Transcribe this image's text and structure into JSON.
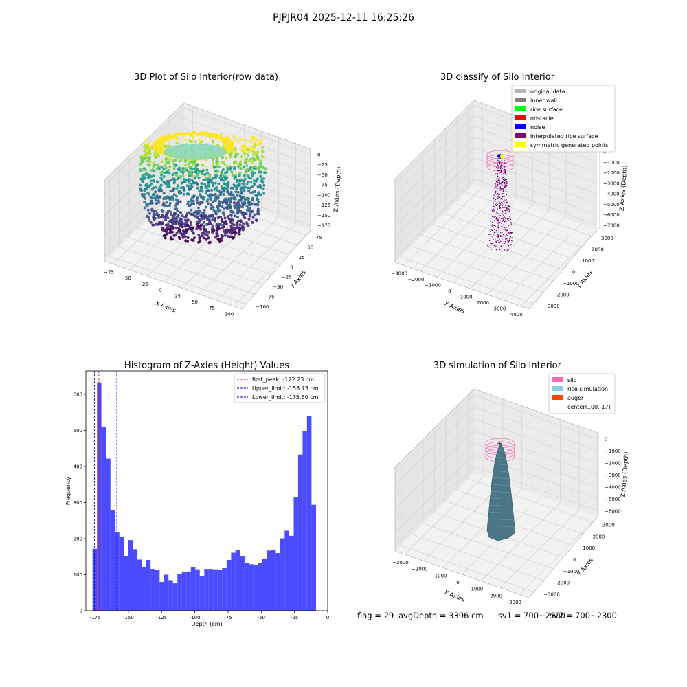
{
  "figure": {
    "suptitle": "PJPJR04 2025-12-11 16:25:26",
    "status": {
      "flag": "flag = 29",
      "avg_depth": "avgDepth = 3396 cm",
      "sv1": "sv1 = 700~2300",
      "sv2": "sv2 = 700~2300"
    }
  },
  "chart_data": [
    {
      "type": "scatter",
      "projection": "3d",
      "title": "3D Plot of Silo Interior(row data)",
      "xlabel": "X Axies",
      "ylabel": "Y Axies",
      "zlabel": "Z Axies (Depth)",
      "x_ticks": [
        "−75",
        "−50",
        "−25",
        "0",
        "25",
        "50",
        "75",
        "100"
      ],
      "y_ticks": [
        "−100",
        "−75",
        "−50",
        "−25",
        "0",
        "25",
        "50",
        "75"
      ],
      "z_ticks": [
        "0",
        "−25",
        "−50",
        "−75",
        "−100",
        "−125",
        "−150",
        "−175"
      ],
      "xlim": [
        -85,
        110
      ],
      "ylim": [
        -100,
        85
      ],
      "zlim": [
        -190,
        5
      ],
      "colormap": "viridis",
      "grid": true
    },
    {
      "type": "scatter",
      "projection": "3d",
      "title": "3D classify of Silo Interior",
      "xlabel": "X Axies",
      "ylabel": "Y Axies",
      "zlabel": "Z Axies (Depth)",
      "x_ticks": [
        "−3000",
        "−2000",
        "−1000",
        "0",
        "1000",
        "2000",
        "3000",
        "4000"
      ],
      "y_ticks": [
        "−3000",
        "−2000",
        "−1000",
        "0",
        "1000",
        "2000",
        "3000"
      ],
      "z_ticks": [
        "0",
        "−1000",
        "−2000",
        "−3000",
        "−4000",
        "−5000",
        "−6000",
        "−7000"
      ],
      "xlim": [
        -3500,
        4000
      ],
      "ylim": [
        -3500,
        3500
      ],
      "zlim": [
        -7500,
        200
      ],
      "legend": {
        "position": "top-right",
        "entries": [
          {
            "label": "original data",
            "color": "#b3b3b3"
          },
          {
            "label": "inner wall",
            "color": "#808080"
          },
          {
            "label": "rice surface",
            "color": "#00ff00"
          },
          {
            "label": "obstacle",
            "color": "#ff0000"
          },
          {
            "label": "noise",
            "color": "#0000ff"
          },
          {
            "label": "interpolated rice surface",
            "color": "#800080"
          },
          {
            "label": "symmetric generated points",
            "color": "#ffff00"
          }
        ]
      },
      "grid": true
    },
    {
      "type": "bar",
      "title": "Histogram of Z-Axies (Height) Values",
      "xlabel": "Depth (cm)",
      "ylabel": "Frequency",
      "bar_color": "#0000ff",
      "bar_alpha": 0.7,
      "bin_edges": [
        -177.0,
        -173.6,
        -170.3,
        -166.9,
        -163.5,
        -160.2,
        -156.8,
        -153.5,
        -150.1,
        -146.7,
        -143.4,
        -140.0,
        -136.6,
        -133.3,
        -129.9,
        -126.5,
        -123.2,
        -119.8,
        -116.5,
        -113.1,
        -109.7,
        -106.4,
        -103.0,
        -99.6,
        -96.3,
        -92.9,
        -89.6,
        -86.2,
        -82.8,
        -79.5,
        -76.1,
        -72.7,
        -69.4,
        -66.0,
        -62.6,
        -59.3,
        -55.9,
        -52.6,
        -49.2,
        -45.8,
        -42.5,
        -39.1,
        -35.7,
        -32.4,
        -29.0,
        -25.6,
        -22.3,
        -18.9,
        -15.6,
        -12.2,
        -8.8
      ],
      "values": [
        172,
        633,
        509,
        422,
        280,
        218,
        205,
        151,
        196,
        171,
        142,
        122,
        141,
        116,
        113,
        80,
        100,
        85,
        76,
        103,
        108,
        109,
        120,
        115,
        96,
        116,
        116,
        115,
        113,
        118,
        141,
        161,
        168,
        151,
        132,
        129,
        126,
        132,
        145,
        167,
        168,
        160,
        201,
        222,
        208,
        316,
        433,
        498,
        541,
        294
      ],
      "xlim": [
        -182,
        0
      ],
      "ylim": [
        0,
        665
      ],
      "x_ticks": [
        -175,
        -150,
        -125,
        -100,
        -75,
        -50,
        -25,
        0
      ],
      "y_ticks": [
        0,
        100,
        200,
        300,
        400,
        500,
        600
      ],
      "vlines": [
        {
          "label": "first_peak: -172.23 cm",
          "x": -172.23,
          "color": "#ff0000"
        },
        {
          "label": "Upper_limit: -158.73 cm",
          "x": -158.73,
          "color": "#0000ff"
        },
        {
          "label": "Lower_limit: -175.60 cm",
          "x": -175.6,
          "color": "#0000aa"
        }
      ],
      "legend": {
        "position": "top-right"
      },
      "grid": false
    },
    {
      "type": "surface",
      "projection": "3d",
      "title": "3D simulation of Silo Interior",
      "xlabel": "X Axies",
      "ylabel": "Y Axies",
      "zlabel": "Z Axies (Depth)",
      "x_ticks": [
        "−3000",
        "−2000",
        "−1000",
        "0",
        "1000",
        "2000",
        "3000"
      ],
      "y_ticks": [
        "−3000",
        "−2000",
        "−1000",
        "0",
        "1000",
        "2000",
        "3000"
      ],
      "z_ticks": [
        "0",
        "−1000",
        "−2000",
        "−3000",
        "−4000",
        "−5000",
        "−6000"
      ],
      "xlim": [
        -3500,
        3500
      ],
      "ylim": [
        -3500,
        3500
      ],
      "zlim": [
        -6800,
        200
      ],
      "legend": {
        "position": "top-right",
        "entries": [
          {
            "label": "silo",
            "color": "#ff69b4"
          },
          {
            "label": "rice simulation",
            "color": "#87ceeb"
          },
          {
            "label": "auger",
            "color": "#ff4500"
          },
          {
            "label": "center(100,-17)",
            "color": ""
          }
        ]
      },
      "grid": true
    }
  ]
}
